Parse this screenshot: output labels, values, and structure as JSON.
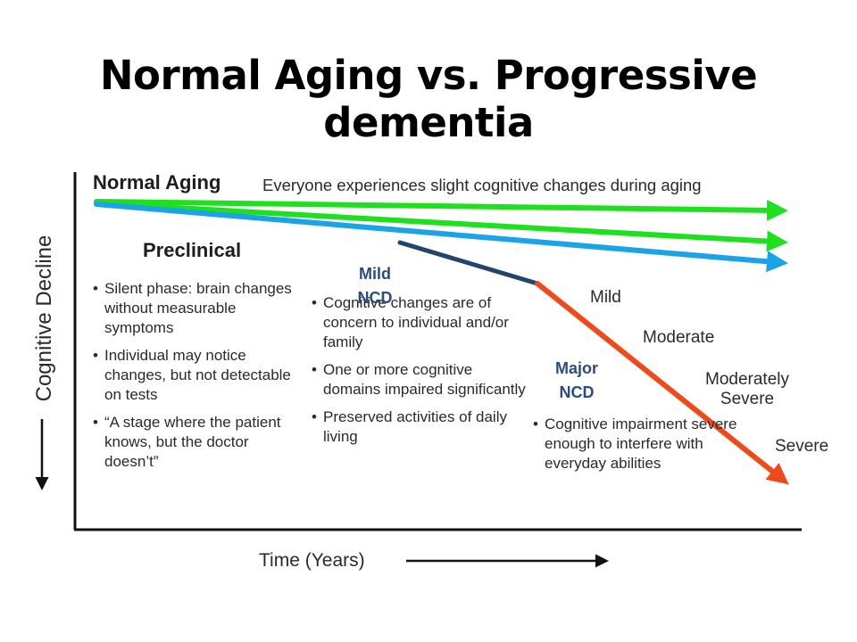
{
  "title": "Normal Aging vs. Progressive dementia",
  "axes": {
    "y_label": "Cognitive Decline",
    "x_label": "Time (Years)"
  },
  "normal_aging": {
    "heading": "Normal Aging",
    "caption": "Everyone experiences slight cognitive changes during aging"
  },
  "preclinical": {
    "heading": "Preclinical",
    "bullets": [
      "Silent phase: brain changes without measurable symptoms",
      "Individual may notice changes, but not detectable on tests",
      "“A stage where the patient knows, but the doctor doesn’t”"
    ]
  },
  "mild_ncd": {
    "label_line1": "Mild",
    "label_line2": "NCD",
    "bullets": [
      "Cognitive changes are of concern to individual and/or family",
      "One or more cognitive domains impaired significantly",
      "Preserved activities of daily living"
    ]
  },
  "major_ncd": {
    "label_line1": "Major",
    "label_line2": "NCD",
    "bullets": [
      "Cognitive impairment severe enough to interfere with everyday abilities"
    ]
  },
  "severity_levels": [
    "Mild",
    "Moderate",
    "Moderately",
    "Severe",
    "Severe"
  ],
  "colors": {
    "normal_aging_arrows": "#1fe01f",
    "preclinical_arrow": "#1aa3e6",
    "mild_ncd_segment": "#22446e",
    "major_ncd_arrow": "#ee4a1c",
    "axis": "#111111"
  }
}
